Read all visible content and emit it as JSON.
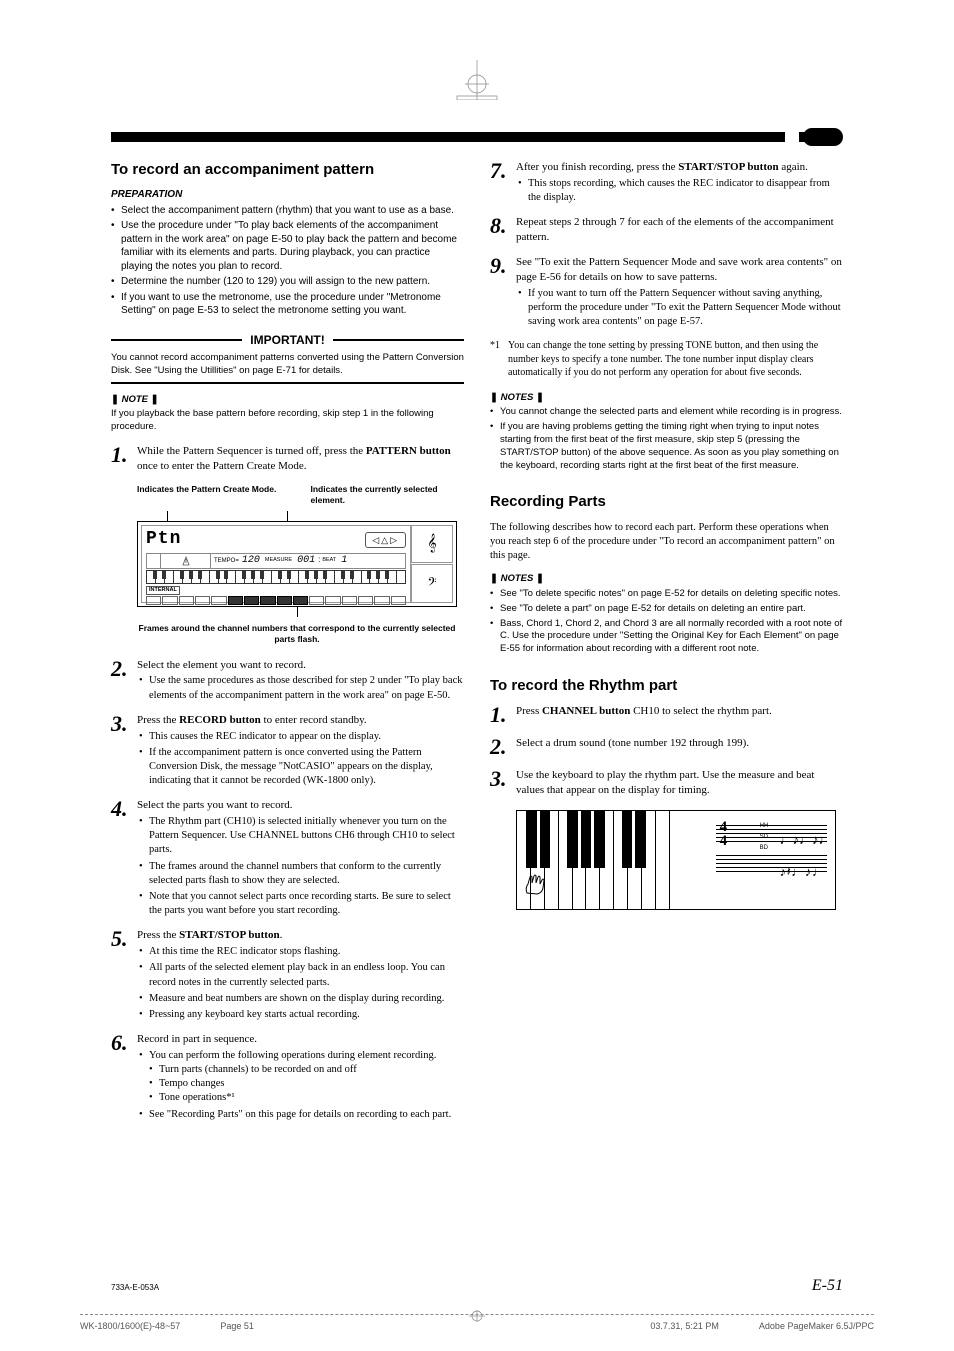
{
  "header": {
    "section_title": "To record an accompaniment pattern",
    "prep_title": "PREPARATION",
    "prep_items": [
      "Select the accompaniment pattern (rhythm) that you want to use as a base.",
      "Use the procedure under \"To play back elements of the accompaniment pattern in the work area\" on page E-50 to play back the pattern and become familiar with its elements and parts. During playback, you can practice playing the notes you plan to record.",
      "Determine the number (120 to 129) you will assign to the new pattern.",
      "If you want to use the metronome, use the procedure under \"Metronome Setting\" on page E-53 to select the metronome setting you want."
    ]
  },
  "important": {
    "label": "IMPORTANT!",
    "body": "You cannot record accompaniment patterns converted using the Pattern Conversion Disk. See \"Using the Utillities\" on page E-71 for details."
  },
  "note1": {
    "heading": "NOTE",
    "body": "If you playback the base pattern before recording, skip step 1 in the following procedure."
  },
  "lcd": {
    "label_left": "Indicates the Pattern Create Mode.",
    "label_right": "Indicates the currently selected element.",
    "ptn": "Ptn",
    "tempo_label": "TEMPO=",
    "tempo_value": "120",
    "measure_label": "MEASURE",
    "beat_label": "BEAT",
    "measure_value": "001",
    "beat_value": "1",
    "internal": "INTERNAL",
    "caption": "Frames around the channel numbers that correspond to the currently selected parts flash."
  },
  "steps_left": [
    {
      "num": "1.",
      "body": "While the Pattern Sequencer is turned off, press the <b>PATTERN button</b> once to enter the Pattern Create Mode.",
      "bullets": []
    },
    {
      "num": "2.",
      "body": "Select the element you want to record.",
      "bullets": [
        "Use the same procedures as those described for step 2 under \"To play back elements of the accompaniment pattern in the work area\" on page E-50."
      ]
    },
    {
      "num": "3.",
      "body": "Press the <b>RECORD button</b> to enter record standby.",
      "bullets": [
        "This causes the REC indicator to appear on the display.",
        "If the accompaniment pattern is once converted using the Pattern Conversion Disk, the message \"NotCASIO\" appears on the display, indicating that it cannot be recorded (WK-1800 only)."
      ]
    },
    {
      "num": "4.",
      "body": "Select the parts you want to record.",
      "bullets": [
        "The Rhythm part (CH10) is selected initially whenever you turn on the Pattern Sequencer. Use CHANNEL buttons CH6 through CH10 to select parts.",
        "The frames around the channel numbers that conform to the currently selected parts flash to show they are selected.",
        "Note that you cannot select parts once recording starts. Be sure to select the parts you want before you start recording."
      ]
    },
    {
      "num": "5.",
      "body": "Press the <b>START/STOP button</b>.",
      "bullets": [
        "At this time the REC indicator stops flashing.",
        "All parts of the selected element play back in an endless loop. You can record notes in the currently selected parts.",
        "Measure and beat numbers are shown on the display during recording.",
        "Pressing any keyboard key starts actual recording."
      ]
    },
    {
      "num": "6.",
      "body": "Record in part in sequence.",
      "bullets": [
        "You can perform the following operations during element recording."
      ],
      "sub_bullets": [
        "Turn parts (channels) to be recorded on and off",
        "Tempo changes",
        "Tone operations*¹"
      ],
      "bullets2": [
        "See \"Recording Parts\" on this page for details on recording to each part."
      ]
    }
  ],
  "steps_right": [
    {
      "num": "7.",
      "body": "After you finish recording, press the <b>START/STOP button</b> again.",
      "bullets": [
        "This stops recording, which causes the REC indicator to disappear from the display."
      ]
    },
    {
      "num": "8.",
      "body": "Repeat steps 2 through 7 for each of the elements of the accompaniment pattern.",
      "bullets": []
    },
    {
      "num": "9.",
      "body": "See \"To exit the Pattern Sequencer Mode and save work area contents\" on page E-56 for details on how to save patterns.",
      "bullets": [
        "If you want to turn off the Pattern Sequencer without saving anything, perform the procedure under \"To exit the Pattern Sequencer Mode without saving work area contents\" on page E-57."
      ]
    }
  ],
  "footnote": {
    "mark": "*1",
    "body": "You can change the tone setting by pressing TONE button, and then using the number keys to specify a tone number. The tone number input display clears automatically if you do not perform any operation for about five seconds."
  },
  "notes2": {
    "heading": "NOTES",
    "items": [
      "You cannot change the selected parts and element while recording is in progress.",
      "If you are having problems getting the timing right when trying to input notes starting from the first beat of the first measure, skip step 5 (pressing the START/STOP button) of the above sequence. As soon as you play something on the keyboard, recording starts right at the first beat of the first measure."
    ]
  },
  "recording_parts": {
    "title": "Recording Parts",
    "intro": "The following describes how to record each part. Perform these operations when you reach step 6 of the procedure under \"To record an accompaniment pattern\" on this page."
  },
  "notes3": {
    "heading": "NOTES",
    "items": [
      "See \"To delete specific notes\" on page E-52 for details on deleting specific notes.",
      "See \"To delete a part\" on page E-52 for details on deleting an entire part.",
      "Bass, Chord 1, Chord 2, and Chord 3 are all normally recorded with a root note of C. Use the procedure under \"Setting the Original Key for Each Element\" on page E-55 for information about recording with a different root note."
    ]
  },
  "rhythm_part": {
    "title": "To record the Rhythm part",
    "steps": [
      {
        "num": "1.",
        "body": "Press <b>CHANNEL button</b> CH10 to select the rhythm part."
      },
      {
        "num": "2.",
        "body": "Select a drum sound (tone number 192 through 199)."
      },
      {
        "num": "3.",
        "body": "Use the keyboard to play the rhythm part. Use the measure and beat values that appear on the display for timing."
      }
    ],
    "drum_labels": [
      "HH",
      "SD",
      "BD"
    ],
    "time_sig_top": "4",
    "time_sig_bot": "4"
  },
  "footer": {
    "code": "733A-E-053A",
    "page": "E-51"
  },
  "print_footer": {
    "file": "WK-1800/1600(E)-48~57",
    "page": "Page 51",
    "date": "03.7.31, 5:21 PM",
    "app": "Adobe PageMaker 6.5J/PPC"
  }
}
